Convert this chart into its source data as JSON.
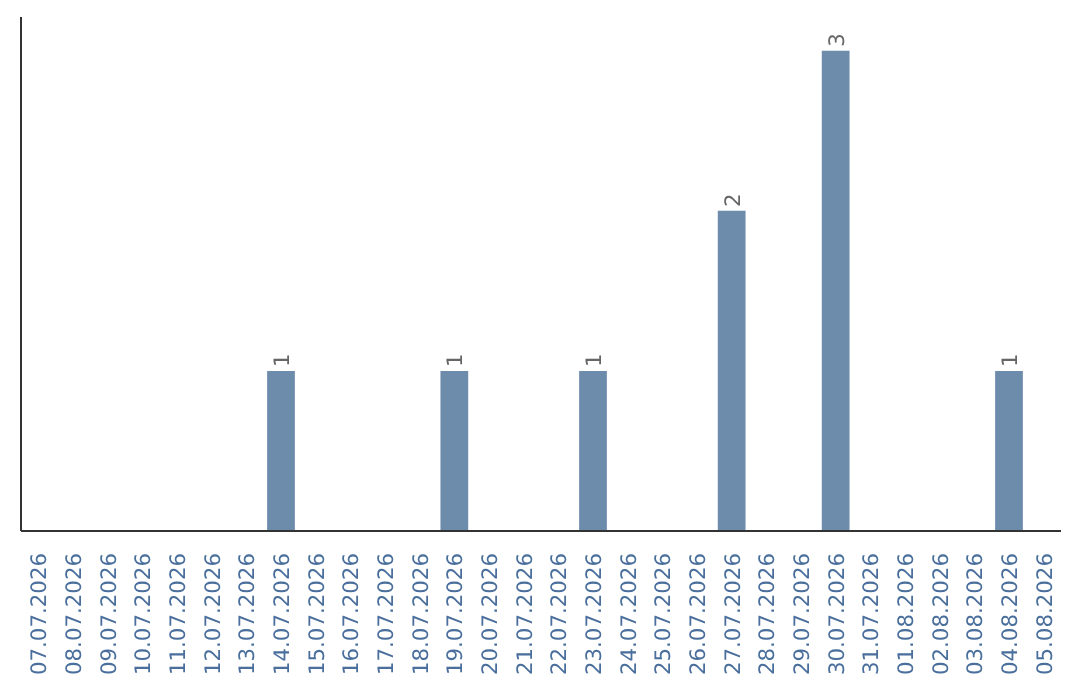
{
  "chart_data": {
    "type": "bar",
    "categories": [
      "07.07.2026",
      "08.07.2026",
      "09.07.2026",
      "10.07.2026",
      "11.07.2026",
      "12.07.2026",
      "13.07.2026",
      "14.07.2026",
      "15.07.2026",
      "16.07.2026",
      "17.07.2026",
      "18.07.2026",
      "19.07.2026",
      "20.07.2026",
      "21.07.2026",
      "22.07.2026",
      "23.07.2026",
      "24.07.2026",
      "25.07.2026",
      "26.07.2026",
      "27.07.2026",
      "28.07.2026",
      "29.07.2026",
      "30.07.2026",
      "31.07.2026",
      "01.08.2026",
      "02.08.2026",
      "03.08.2026",
      "04.08.2026",
      "05.08.2026"
    ],
    "values": [
      0,
      0,
      0,
      0,
      0,
      0,
      0,
      1,
      0,
      0,
      0,
      0,
      1,
      0,
      0,
      0,
      1,
      0,
      0,
      0,
      2,
      0,
      0,
      3,
      0,
      0,
      0,
      0,
      1,
      0
    ],
    "value_labels": [
      null,
      null,
      null,
      null,
      null,
      null,
      null,
      "1",
      null,
      null,
      null,
      null,
      "1",
      null,
      null,
      null,
      "1",
      null,
      null,
      null,
      "2",
      null,
      null,
      "3",
      null,
      null,
      null,
      null,
      "1",
      null
    ],
    "color": "#6d8cab",
    "grid": false,
    "tick_labels": "x"
  }
}
